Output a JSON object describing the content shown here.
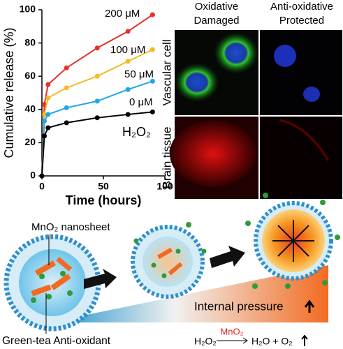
{
  "chart_data": {
    "type": "line",
    "x_label": "Time (hours)",
    "y_label": "Cumulative release (%)",
    "annotation": "H₂O₂",
    "x": [
      0,
      2,
      5,
      20,
      45,
      70,
      90
    ],
    "series": [
      {
        "name": "200 μM",
        "color": "#e8302a",
        "values": [
          0,
          43,
          55,
          65,
          77,
          87,
          97
        ]
      },
      {
        "name": "100 μM",
        "color": "#f7b924",
        "values": [
          0,
          37,
          47,
          53,
          60,
          69,
          76
        ]
      },
      {
        "name": "50 μM",
        "color": "#1ea7e8",
        "values": [
          0,
          33,
          37,
          41,
          45,
          52,
          57
        ]
      },
      {
        "name": "0 μM",
        "color": "#000000",
        "values": [
          0,
          24,
          29,
          32,
          35,
          37,
          38.5
        ]
      }
    ],
    "xlim": [
      0,
      100
    ],
    "ylim": [
      0,
      100
    ],
    "xticks": [
      0,
      50,
      100
    ],
    "yticks": [
      0,
      20,
      40,
      60,
      80,
      100
    ]
  },
  "micrographs": {
    "columns": [
      [
        "Oxidative",
        "Damaged"
      ],
      [
        "Anti-oxidative",
        "Protected"
      ]
    ],
    "rows": [
      "Vascular cell",
      "Brain tissue"
    ]
  },
  "schematic": {
    "nanosheet_label": "MnO₂ nanosheet",
    "antioxidant_label": "Green-tea Anti-oxidant",
    "pressure_label": "Internal pressure",
    "reaction": {
      "reactant": "H₂O₂",
      "catalyst": "MnO₂",
      "products": "H₂O + O₂"
    }
  }
}
